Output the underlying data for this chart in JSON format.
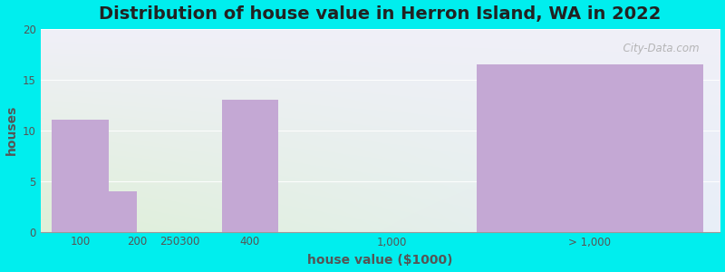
{
  "title": "Distribution of house value in Herron Island, WA in 2022",
  "xlabel": "house value ($1000)",
  "ylabel": "houses",
  "figure_bg": "#00EEEE",
  "bar_color": "#c4a8d4",
  "yticks": [
    0,
    5,
    10,
    15,
    20
  ],
  "ylim": [
    0,
    20
  ],
  "title_fontsize": 14,
  "axis_label_fontsize": 10,
  "tick_fontsize": 8.5,
  "watermark": "  City-Data.com",
  "tick_labels": [
    "100",
    "200",
    "250300",
    "400",
    "1,000",
    "> 1,000"
  ],
  "tick_x": [
    0.5,
    1.5,
    2.25,
    3.5,
    6.0,
    9.5
  ],
  "bar_left": [
    0.0,
    1.0,
    2.0,
    3.0,
    7.5
  ],
  "bar_width": [
    1.0,
    0.5,
    0.5,
    1.0,
    4.0
  ],
  "bar_vals": [
    11,
    4,
    0,
    13,
    16.5
  ],
  "bar_draw": [
    true,
    true,
    false,
    true,
    true
  ],
  "xlim": [
    -0.2,
    11.8
  ],
  "grad_topleft": "#dff0d8",
  "grad_topright": "#f0f0f8",
  "grad_botleft": "#c8e8c0",
  "grad_botright": "#e8eef8"
}
